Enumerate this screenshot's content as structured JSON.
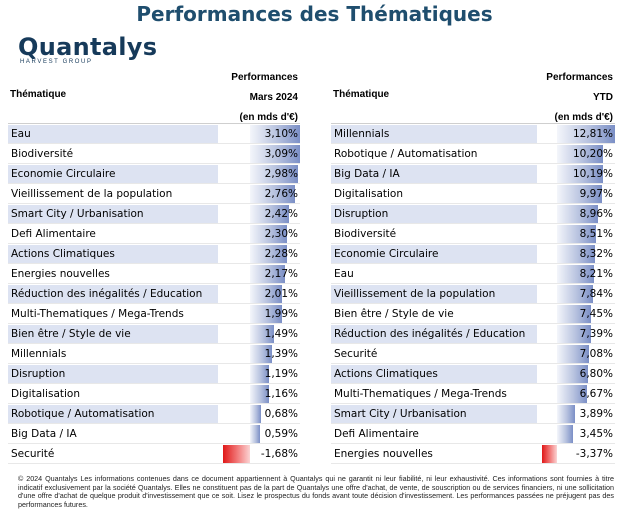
{
  "title": "Performances des Thématiques",
  "logo": {
    "name": "Quantalys",
    "subtitle": "HARVEST GROUP"
  },
  "left_table": {
    "header_theme": "Thématique",
    "header_perf": [
      "Performances",
      "Mars 2024",
      "(en mds d'€)"
    ],
    "rows": [
      {
        "label": "Eau",
        "value": "3,10%",
        "num": 3.1,
        "highlight": true
      },
      {
        "label": "Biodiversité",
        "value": "3,09%",
        "num": 3.09,
        "highlight": false
      },
      {
        "label": "Economie Circulaire",
        "value": "2,98%",
        "num": 2.98,
        "highlight": true
      },
      {
        "label": "Vieillissement de la population",
        "value": "2,76%",
        "num": 2.76,
        "highlight": false
      },
      {
        "label": "Smart City / Urbanisation",
        "value": "2,42%",
        "num": 2.42,
        "highlight": true
      },
      {
        "label": "Defi Alimentaire",
        "value": "2,30%",
        "num": 2.3,
        "highlight": false
      },
      {
        "label": "Actions Climatiques",
        "value": "2,28%",
        "num": 2.28,
        "highlight": true
      },
      {
        "label": "Energies nouvelles",
        "value": "2,17%",
        "num": 2.17,
        "highlight": false
      },
      {
        "label": "Réduction des inégalités / Education",
        "value": "2,01%",
        "num": 2.01,
        "highlight": true
      },
      {
        "label": "Multi-Thematiques / Mega-Trends",
        "value": "1,99%",
        "num": 1.99,
        "highlight": false
      },
      {
        "label": "Bien être / Style de vie",
        "value": "1,49%",
        "num": 1.49,
        "highlight": true
      },
      {
        "label": "Millennials",
        "value": "1,39%",
        "num": 1.39,
        "highlight": false
      },
      {
        "label": "Disruption",
        "value": "1,19%",
        "num": 1.19,
        "highlight": true
      },
      {
        "label": "Digitalisation",
        "value": "1,16%",
        "num": 1.16,
        "highlight": false
      },
      {
        "label": "Robotique / Automatisation",
        "value": "0,68%",
        "num": 0.68,
        "highlight": true
      },
      {
        "label": "Big Data / IA",
        "value": "0,59%",
        "num": 0.59,
        "highlight": false
      },
      {
        "label": "Securité",
        "value": "-1,68%",
        "num": -1.68,
        "highlight": false
      }
    ]
  },
  "right_table": {
    "header_theme": "Thématique",
    "header_perf": [
      "Performances",
      "YTD",
      "(en mds d'€)"
    ],
    "rows": [
      {
        "label": "Millennials",
        "value": "12,81%",
        "num": 12.81,
        "highlight": true
      },
      {
        "label": "Robotique / Automatisation",
        "value": "10,20%",
        "num": 10.2,
        "highlight": false
      },
      {
        "label": "Big Data / IA",
        "value": "10,19%",
        "num": 10.19,
        "highlight": true
      },
      {
        "label": "Digitalisation",
        "value": "9,97%",
        "num": 9.97,
        "highlight": false
      },
      {
        "label": "Disruption",
        "value": "8,96%",
        "num": 8.96,
        "highlight": true
      },
      {
        "label": "Biodiversité",
        "value": "8,51%",
        "num": 8.51,
        "highlight": false
      },
      {
        "label": "Economie Circulaire",
        "value": "8,32%",
        "num": 8.32,
        "highlight": true
      },
      {
        "label": "Eau",
        "value": "8,21%",
        "num": 8.21,
        "highlight": false
      },
      {
        "label": "Vieillissement de la population",
        "value": "7,84%",
        "num": 7.84,
        "highlight": true
      },
      {
        "label": "Bien être / Style de vie",
        "value": "7,45%",
        "num": 7.45,
        "highlight": false
      },
      {
        "label": "Réduction des inégalités / Education",
        "value": "7,39%",
        "num": 7.39,
        "highlight": true
      },
      {
        "label": "Securité",
        "value": "7,08%",
        "num": 7.08,
        "highlight": false
      },
      {
        "label": "Actions Climatiques",
        "value": "6,80%",
        "num": 6.8,
        "highlight": true
      },
      {
        "label": "Multi-Thematiques / Mega-Trends",
        "value": "6,67%",
        "num": 6.67,
        "highlight": false
      },
      {
        "label": "Smart City / Urbanisation",
        "value": "3,89%",
        "num": 3.89,
        "highlight": true
      },
      {
        "label": "Defi Alimentaire",
        "value": "3,45%",
        "num": 3.45,
        "highlight": false
      },
      {
        "label": "Energies nouvelles",
        "value": "-3,37%",
        "num": -3.37,
        "highlight": false
      }
    ]
  },
  "colors": {
    "title": "#1f4e6e",
    "highlight": "#dde3f2",
    "bar_positive": "#7b8fc6",
    "bar_negative": "#e01818"
  },
  "footnote": "© 2024 Quantalys Les informations contenues dans ce document appartiennent à Quantalys qui ne garantit ni leur fiabilité, ni leur exhaustivité. Ces informations sont fournies à titre indicatif exclusivement par la société Quantalys. Elles ne constituent pas de la part de Quantalys une offre d'achat, de vente, de souscription ou de services financiers, ni une sollicitation d'une offre d'achat de quelque produit d'investissement que ce soit. Lisez le prospectus du fonds avant toute décision d'investissement. Les performances passées ne préjugent pas des performances futures."
}
